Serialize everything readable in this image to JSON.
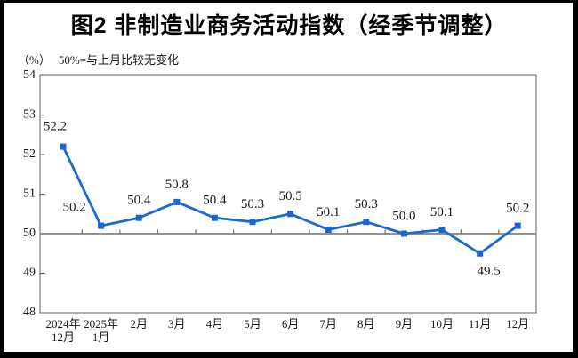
{
  "header": {
    "title": "图2 非制造业商务活动指数（经季节调整）"
  },
  "subtitle": {
    "unit": "（%）",
    "note": "50%=与上月比较无变化"
  },
  "chart_data": {
    "type": "line",
    "title": "图2 非制造业商务活动指数（经季节调整）",
    "subtitle": "（%）50%=与上月比较无变化",
    "categories": [
      "2024年\n12月",
      "2025年\n1月",
      "2月",
      "3月",
      "4月",
      "5月",
      "6月",
      "7月",
      "8月",
      "9月",
      "10月",
      "11月",
      "12月"
    ],
    "values": [
      52.2,
      50.2,
      50.4,
      50.8,
      50.4,
      50.3,
      50.5,
      50.1,
      50.3,
      50.0,
      50.1,
      49.5,
      50.2
    ],
    "ylim": [
      48,
      54
    ],
    "yticks": [
      54,
      53,
      52,
      51,
      50,
      49,
      48
    ],
    "reference_line": 50,
    "grid": false,
    "legend": "none",
    "colors": {
      "line": "#1A6AD4",
      "marker": "#1B67CE",
      "plot_border": "#848484",
      "reference_line": "#6F6F6F",
      "tick": "#6F6F6F",
      "text": "#1a1a1a",
      "data_label": "#1a1a1a"
    },
    "label_default_offset": [
      0,
      -19
    ],
    "label_offsets": {
      "0": [
        -9,
        -22
      ],
      "1": [
        -30,
        -20
      ],
      "11": [
        10,
        21
      ]
    }
  }
}
